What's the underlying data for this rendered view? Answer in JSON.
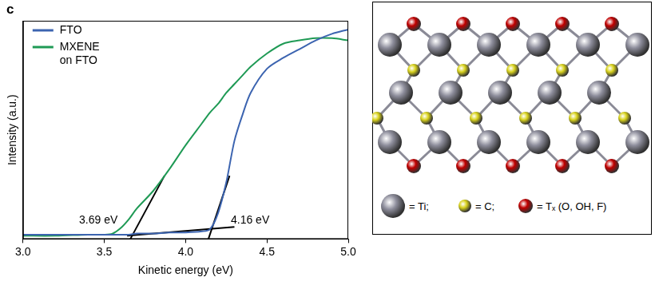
{
  "chart_data": {
    "type": "line",
    "panel_label": "c",
    "x_label": "Kinetic energy (eV)",
    "y_label": "Intensity (a.u.)",
    "x": [
      3.0,
      3.2,
      3.4,
      3.5,
      3.55,
      3.6,
      3.65,
      3.7,
      3.8,
      3.9,
      4.0,
      4.1,
      4.15,
      4.2,
      4.25,
      4.3,
      4.35,
      4.4,
      4.5,
      4.6,
      4.7,
      4.8,
      4.9,
      5.0
    ],
    "series": [
      {
        "name": "FTO",
        "color": "#3c64b0",
        "values": [
          0.02,
          0.02,
          0.02,
          0.02,
          0.02,
          0.02,
          0.02,
          0.025,
          0.025,
          0.03,
          0.03,
          0.035,
          0.045,
          0.12,
          0.26,
          0.45,
          0.57,
          0.67,
          0.78,
          0.83,
          0.87,
          0.91,
          0.94,
          0.96
        ]
      },
      {
        "name": "MXENE on FTO",
        "color": "#1f9a55",
        "values": [
          0.015,
          0.015,
          0.02,
          0.02,
          0.025,
          0.05,
          0.09,
          0.14,
          0.22,
          0.32,
          0.43,
          0.53,
          0.58,
          0.62,
          0.67,
          0.71,
          0.75,
          0.79,
          0.85,
          0.895,
          0.91,
          0.92,
          0.92,
          0.91
        ]
      }
    ],
    "fit_lines": [
      {
        "color": "#000000",
        "x": [
          3.64,
          4.3
        ],
        "values": [
          0.015,
          0.055
        ]
      },
      {
        "color": "#000000",
        "x": [
          3.66,
          3.87
        ],
        "values": [
          0,
          0.29
        ]
      },
      {
        "color": "#000000",
        "x": [
          4.14,
          4.27
        ],
        "values": [
          0,
          0.29
        ]
      }
    ],
    "annotations": [
      {
        "text": "3.69 eV",
        "x": 3.69
      },
      {
        "text": "4.16 eV",
        "x": 4.16
      }
    ],
    "xlim": [
      3,
      5
    ],
    "xticks": [
      {
        "value": 3,
        "label": "3.0"
      },
      {
        "value": 3.5,
        "label": "3.5"
      },
      {
        "value": 4,
        "label": "4.0"
      },
      {
        "value": 4.5,
        "label": "4.5"
      },
      {
        "value": 5,
        "label": "5.0"
      }
    ],
    "ylim": [
      0,
      1
    ],
    "tick_labels": "x",
    "grid": false,
    "legend": "upper left"
  },
  "diagram": {
    "legend": [
      {
        "label": "= Ti;",
        "color": "#8e8e9c"
      },
      {
        "label": "= C;",
        "color": "#d8d21c"
      },
      {
        "label": "= Tₓ (O, OH, F)",
        "color": "#c00000"
      }
    ]
  }
}
